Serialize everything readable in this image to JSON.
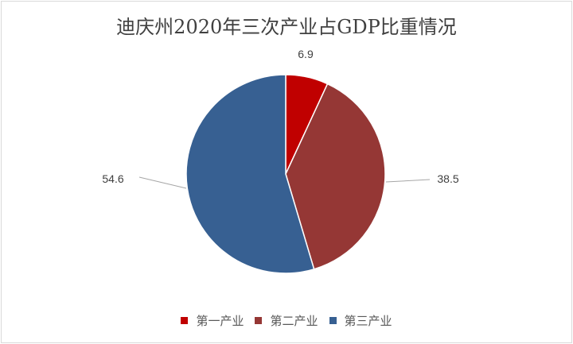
{
  "chart_data": {
    "type": "pie",
    "title": "迪庆州2020年三次产业占GDP比重情况",
    "categories": [
      "第一产业",
      "第二产业",
      "第三产业"
    ],
    "values": [
      6.9,
      38.5,
      54.6
    ],
    "colors": [
      "#c00000",
      "#953735",
      "#376092"
    ],
    "labels": [
      "6.9",
      "38.5",
      "54.6"
    ],
    "legend_position": "bottom"
  }
}
